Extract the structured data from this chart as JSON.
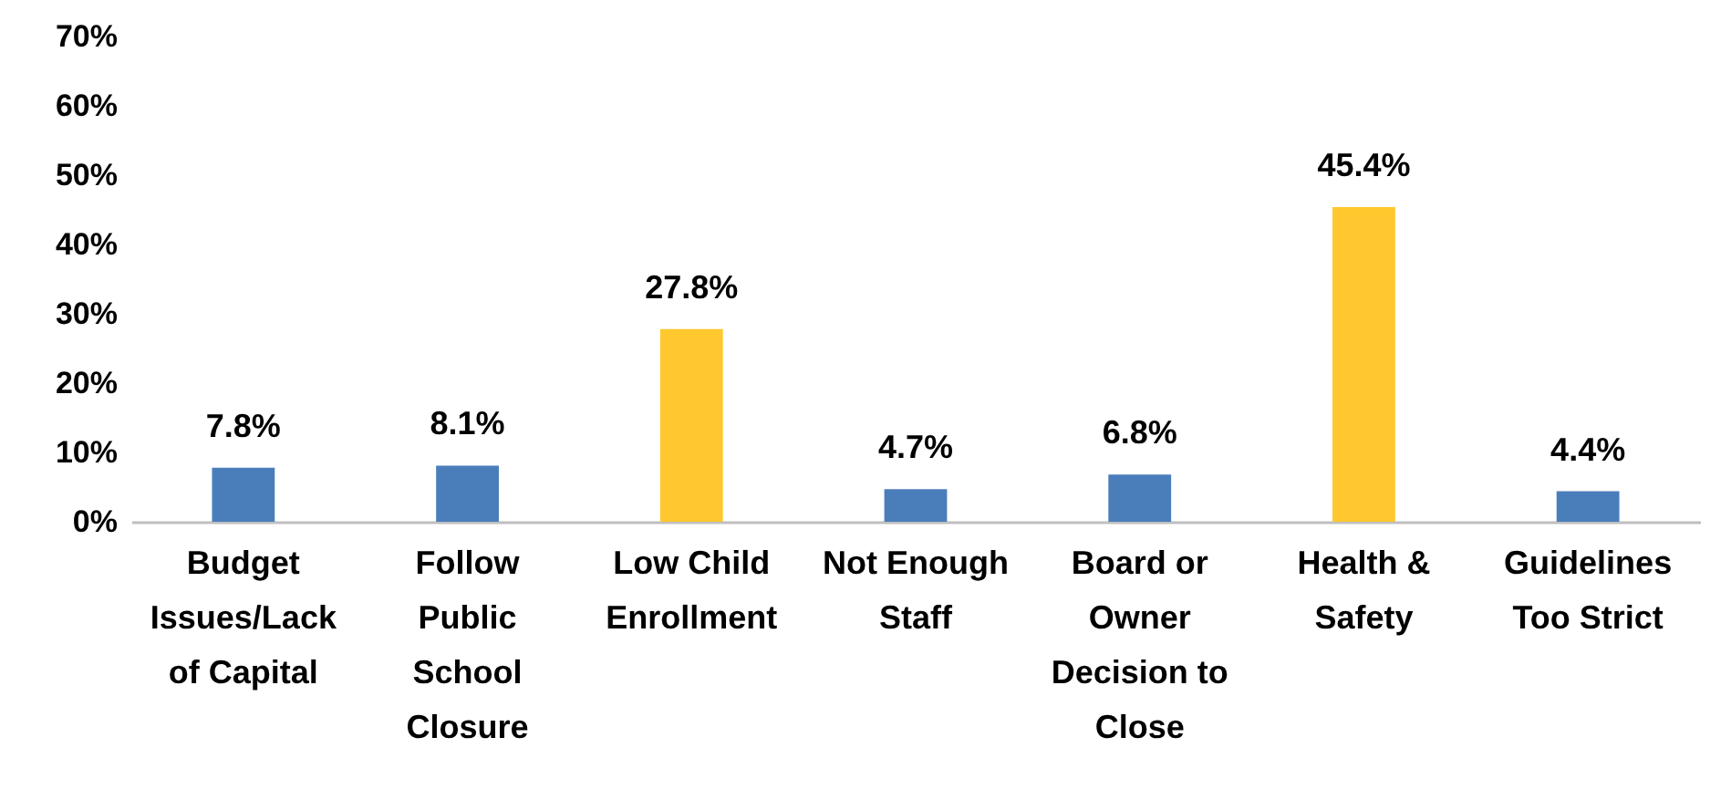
{
  "chart_data": {
    "type": "bar",
    "categories": [
      "Budget Issues/Lack of Capital",
      "Follow Public School Closure",
      "Low Child Enrollment",
      "Not Enough Staff",
      "Board or Owner Decision to Close",
      "Health & Safety",
      "Guidelines Too Strict"
    ],
    "values": [
      7.8,
      8.1,
      27.8,
      4.7,
      6.8,
      45.4,
      4.4
    ],
    "colors": [
      "#4a7ebb",
      "#4a7ebb",
      "#ffc82e",
      "#4a7ebb",
      "#4a7ebb",
      "#ffc82e",
      "#4a7ebb"
    ],
    "value_labels": [
      "7.8%",
      "8.1%",
      "27.8%",
      "4.7%",
      "6.8%",
      "45.4%",
      "4.4%"
    ],
    "ylim": [
      0,
      70
    ],
    "yticks": [
      {
        "value": 0,
        "label": "0%"
      },
      {
        "value": 10,
        "label": "10%"
      },
      {
        "value": 20,
        "label": "20%"
      },
      {
        "value": 30,
        "label": "30%"
      },
      {
        "value": 40,
        "label": "40%"
      },
      {
        "value": 50,
        "label": "50%"
      },
      {
        "value": 60,
        "label": "60%"
      },
      {
        "value": 70,
        "label": "70%"
      }
    ],
    "grid": false
  }
}
